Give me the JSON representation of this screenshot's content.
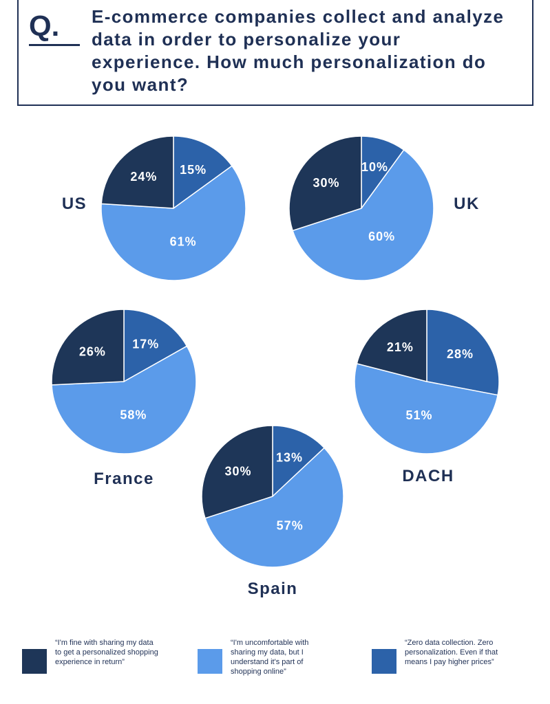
{
  "question": {
    "marker": "Q.",
    "text": "E-commerce companies collect and analyze data in order to personalize your experience. How much personalization do you want?"
  },
  "colors": {
    "share_for_personalization": "#1e3658",
    "uncomfortable_but_understand": "#5b9bea",
    "zero_data_collection": "#2c62a9"
  },
  "legend": [
    {
      "key": "share_for_personalization",
      "text": "“I'm fine with sharing my data to get a personalized shopping experience in return”"
    },
    {
      "key": "uncomfortable_but_understand",
      "text": "“I'm uncomfortable with sharing my data, but I understand it's part of shopping online”"
    },
    {
      "key": "zero_data_collection",
      "text": "“Zero data collection. Zero personalization. Even if that means I pay higher prices”"
    }
  ],
  "chart_data": [
    {
      "type": "pie",
      "title": "US",
      "legend_position": "bottom",
      "slices": [
        {
          "key": "share_for_personalization",
          "value": 24,
          "label": "24%"
        },
        {
          "key": "uncomfortable_but_understand",
          "value": 61,
          "label": "61%"
        },
        {
          "key": "zero_data_collection",
          "value": 15,
          "label": "15%"
        }
      ]
    },
    {
      "type": "pie",
      "title": "UK",
      "legend_position": "bottom",
      "slices": [
        {
          "key": "share_for_personalization",
          "value": 30,
          "label": "30%"
        },
        {
          "key": "uncomfortable_but_understand",
          "value": 60,
          "label": "60%"
        },
        {
          "key": "zero_data_collection",
          "value": 10,
          "label": "10%"
        }
      ]
    },
    {
      "type": "pie",
      "title": "France",
      "legend_position": "bottom",
      "slices": [
        {
          "key": "share_for_personalization",
          "value": 26,
          "label": "26%"
        },
        {
          "key": "uncomfortable_but_understand",
          "value": 58,
          "label": "58%"
        },
        {
          "key": "zero_data_collection",
          "value": 17,
          "label": "17%"
        }
      ]
    },
    {
      "type": "pie",
      "title": "DACH",
      "legend_position": "bottom",
      "slices": [
        {
          "key": "share_for_personalization",
          "value": 21,
          "label": "21%"
        },
        {
          "key": "uncomfortable_but_understand",
          "value": 51,
          "label": "51%"
        },
        {
          "key": "zero_data_collection",
          "value": 28,
          "label": "28%"
        }
      ]
    },
    {
      "type": "pie",
      "title": "Spain",
      "legend_position": "bottom",
      "slices": [
        {
          "key": "share_for_personalization",
          "value": 30,
          "label": "30%"
        },
        {
          "key": "uncomfortable_but_understand",
          "value": 57,
          "label": "57%"
        },
        {
          "key": "zero_data_collection",
          "value": 13,
          "label": "13%"
        }
      ]
    }
  ]
}
